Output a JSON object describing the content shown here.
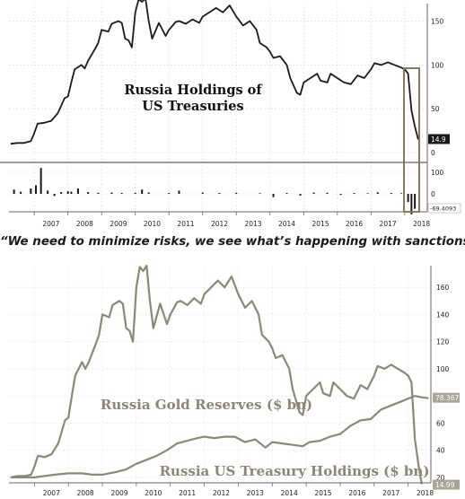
{
  "quote": "“We need to minimize risks, we see what’s happening with sanctions.”",
  "chart_data": [
    {
      "type": "line",
      "title": "Russia Holdings of US Treasuries",
      "title_lines": [
        "Russia Holdings of",
        "US Treasuries"
      ],
      "x_ticks": [
        "2007",
        "2008",
        "2009",
        "2010",
        "2011",
        "2012",
        "2013",
        "2014",
        "2015",
        "2016",
        "2017",
        "2018"
      ],
      "xlim": [
        2006.25,
        2018.67
      ],
      "ylim": [
        0,
        170
      ],
      "y_ticks": [
        0,
        50,
        100,
        150
      ],
      "grid": true,
      "last_value_label": "14.9",
      "series": [
        {
          "values": [
            [
              2006.3,
              10
            ],
            [
              2006.5,
              11
            ],
            [
              2006.7,
              11
            ],
            [
              2006.9,
              13
            ],
            [
              2007.0,
              22
            ],
            [
              2007.1,
              33
            ],
            [
              2007.3,
              34
            ],
            [
              2007.5,
              36
            ],
            [
              2007.7,
              45
            ],
            [
              2007.9,
              62
            ],
            [
              2008.0,
              64
            ],
            [
              2008.1,
              80
            ],
            [
              2008.2,
              95
            ],
            [
              2008.4,
              100
            ],
            [
              2008.5,
              96
            ],
            [
              2008.6,
              105
            ],
            [
              2008.8,
              118
            ],
            [
              2008.9,
              125
            ],
            [
              2009.0,
              140
            ],
            [
              2009.2,
              138
            ],
            [
              2009.3,
              147
            ],
            [
              2009.5,
              150
            ],
            [
              2009.6,
              148
            ],
            [
              2009.7,
              130
            ],
            [
              2009.8,
              128
            ],
            [
              2009.9,
              120
            ],
            [
              2010.0,
              160
            ],
            [
              2010.1,
              175
            ],
            [
              2010.2,
              172
            ],
            [
              2010.3,
              176
            ],
            [
              2010.4,
              150
            ],
            [
              2010.5,
              130
            ],
            [
              2010.7,
              148
            ],
            [
              2010.9,
              133
            ],
            [
              2011.0,
              140
            ],
            [
              2011.2,
              149
            ],
            [
              2011.3,
              150
            ],
            [
              2011.5,
              147
            ],
            [
              2011.7,
              152
            ],
            [
              2011.9,
              148
            ],
            [
              2012.0,
              155
            ],
            [
              2012.2,
              160
            ],
            [
              2012.4,
              165
            ],
            [
              2012.6,
              160
            ],
            [
              2012.8,
              168
            ],
            [
              2013.0,
              155
            ],
            [
              2013.2,
              145
            ],
            [
              2013.4,
              150
            ],
            [
              2013.6,
              140
            ],
            [
              2013.7,
              125
            ],
            [
              2013.9,
              120
            ],
            [
              2014.0,
              115
            ],
            [
              2014.1,
              108
            ],
            [
              2014.3,
              110
            ],
            [
              2014.5,
              100
            ],
            [
              2014.6,
              85
            ],
            [
              2014.8,
              68
            ],
            [
              2014.9,
              66
            ],
            [
              2015.0,
              80
            ],
            [
              2015.2,
              85
            ],
            [
              2015.4,
              90
            ],
            [
              2015.5,
              82
            ],
            [
              2015.7,
              80
            ],
            [
              2015.8,
              90
            ],
            [
              2016.0,
              85
            ],
            [
              2016.2,
              80
            ],
            [
              2016.4,
              78
            ],
            [
              2016.6,
              88
            ],
            [
              2016.8,
              85
            ],
            [
              2017.0,
              95
            ],
            [
              2017.1,
              102
            ],
            [
              2017.3,
              100
            ],
            [
              2017.5,
              103
            ],
            [
              2017.7,
              100
            ],
            [
              2017.9,
              97
            ],
            [
              2018.0,
              95
            ],
            [
              2018.1,
              90
            ],
            [
              2018.2,
              48
            ],
            [
              2018.3,
              30
            ],
            [
              2018.4,
              14.9
            ]
          ]
        }
      ],
      "lower_panel": {
        "type": "bar",
        "y_ticks": [
          0,
          100
        ],
        "ylim": [
          -130,
          130
        ],
        "last_value_label": "-69.4093",
        "x": [
          2006.4,
          2006.6,
          2006.9,
          2007.05,
          2007.2,
          2007.4,
          2007.6,
          2007.8,
          2008.0,
          2008.1,
          2008.3,
          2008.6,
          2008.9,
          2009.3,
          2009.6,
          2010.0,
          2010.2,
          2010.4,
          2011.0,
          2011.3,
          2012.0,
          2012.5,
          2013.0,
          2013.7,
          2014.1,
          2014.5,
          2014.9,
          2015.3,
          2015.7,
          2016.1,
          2016.5,
          2016.9,
          2017.2,
          2017.6,
          2017.9,
          2018.1,
          2018.2,
          2018.3
        ],
        "values": [
          20,
          10,
          25,
          40,
          120,
          15,
          -10,
          8,
          12,
          10,
          25,
          8,
          5,
          6,
          4,
          5,
          20,
          6,
          4,
          15,
          6,
          4,
          5,
          3,
          -15,
          4,
          -8,
          6,
          5,
          -5,
          4,
          3,
          7,
          4,
          3,
          -38,
          -95,
          -69.4
        ]
      }
    },
    {
      "type": "line",
      "x_ticks": [
        "2007",
        "2008",
        "2009",
        "2010",
        "2011",
        "2012",
        "2013",
        "2014",
        "2015",
        "2016",
        "2017",
        "2018"
      ],
      "xlim": [
        2006.25,
        2018.67
      ],
      "ylim": [
        16,
        176
      ],
      "y_ticks": [
        20,
        40,
        60,
        80,
        100,
        120,
        140,
        160
      ],
      "grid": true,
      "series": [
        {
          "name": "Russia Gold Reserves ($ bn)",
          "last_value_label": "78.367",
          "values": [
            [
              2006.3,
              20
            ],
            [
              2006.7,
              20
            ],
            [
              2007.0,
              20
            ],
            [
              2007.3,
              21
            ],
            [
              2007.6,
              22
            ],
            [
              2008.0,
              23
            ],
            [
              2008.4,
              23
            ],
            [
              2008.7,
              22
            ],
            [
              2009.0,
              22
            ],
            [
              2009.4,
              24
            ],
            [
              2009.7,
              26
            ],
            [
              2010.0,
              30
            ],
            [
              2010.3,
              33
            ],
            [
              2010.6,
              36
            ],
            [
              2010.9,
              40
            ],
            [
              2011.2,
              45
            ],
            [
              2011.5,
              47
            ],
            [
              2011.8,
              49
            ],
            [
              2012.0,
              50
            ],
            [
              2012.3,
              49
            ],
            [
              2012.6,
              50
            ],
            [
              2012.9,
              50
            ],
            [
              2013.2,
              46
            ],
            [
              2013.5,
              48
            ],
            [
              2013.8,
              42
            ],
            [
              2014.0,
              46
            ],
            [
              2014.3,
              45
            ],
            [
              2014.6,
              44
            ],
            [
              2014.9,
              43
            ],
            [
              2015.1,
              46
            ],
            [
              2015.4,
              47
            ],
            [
              2015.7,
              50
            ],
            [
              2016.0,
              52
            ],
            [
              2016.3,
              58
            ],
            [
              2016.6,
              62
            ],
            [
              2016.9,
              63
            ],
            [
              2017.2,
              70
            ],
            [
              2017.5,
              73
            ],
            [
              2017.8,
              76
            ],
            [
              2018.0,
              78
            ],
            [
              2018.2,
              80
            ],
            [
              2018.4,
              79
            ],
            [
              2018.6,
              78.367
            ]
          ]
        },
        {
          "name": "Russia US Treasury Holdings ($ bn)",
          "last_value_label": "14.99",
          "values": [
            [
              2006.3,
              20
            ],
            [
              2006.5,
              21
            ],
            [
              2006.7,
              21
            ],
            [
              2006.9,
              22
            ],
            [
              2007.0,
              28
            ],
            [
              2007.1,
              36
            ],
            [
              2007.3,
              35
            ],
            [
              2007.5,
              37
            ],
            [
              2007.7,
              45
            ],
            [
              2007.9,
              62
            ],
            [
              2008.0,
              64
            ],
            [
              2008.1,
              80
            ],
            [
              2008.2,
              95
            ],
            [
              2008.4,
              105
            ],
            [
              2008.5,
              100
            ],
            [
              2008.6,
              105
            ],
            [
              2008.8,
              118
            ],
            [
              2008.9,
              125
            ],
            [
              2009.0,
              140
            ],
            [
              2009.2,
              138
            ],
            [
              2009.3,
              147
            ],
            [
              2009.5,
              150
            ],
            [
              2009.6,
              148
            ],
            [
              2009.7,
              130
            ],
            [
              2009.8,
              128
            ],
            [
              2009.9,
              120
            ],
            [
              2010.0,
              160
            ],
            [
              2010.1,
              175
            ],
            [
              2010.2,
              172
            ],
            [
              2010.3,
              176
            ],
            [
              2010.4,
              150
            ],
            [
              2010.5,
              130
            ],
            [
              2010.7,
              148
            ],
            [
              2010.9,
              133
            ],
            [
              2011.0,
              140
            ],
            [
              2011.2,
              149
            ],
            [
              2011.3,
              150
            ],
            [
              2011.5,
              147
            ],
            [
              2011.7,
              152
            ],
            [
              2011.9,
              148
            ],
            [
              2012.0,
              155
            ],
            [
              2012.2,
              160
            ],
            [
              2012.4,
              165
            ],
            [
              2012.6,
              160
            ],
            [
              2012.8,
              168
            ],
            [
              2013.0,
              155
            ],
            [
              2013.2,
              145
            ],
            [
              2013.4,
              150
            ],
            [
              2013.6,
              140
            ],
            [
              2013.7,
              125
            ],
            [
              2013.9,
              120
            ],
            [
              2014.0,
              115
            ],
            [
              2014.1,
              108
            ],
            [
              2014.3,
              110
            ],
            [
              2014.5,
              100
            ],
            [
              2014.6,
              85
            ],
            [
              2014.8,
              68
            ],
            [
              2014.9,
              66
            ],
            [
              2015.0,
              80
            ],
            [
              2015.2,
              85
            ],
            [
              2015.4,
              90
            ],
            [
              2015.5,
              82
            ],
            [
              2015.7,
              80
            ],
            [
              2015.8,
              90
            ],
            [
              2016.0,
              85
            ],
            [
              2016.2,
              80
            ],
            [
              2016.4,
              78
            ],
            [
              2016.6,
              88
            ],
            [
              2016.8,
              85
            ],
            [
              2017.0,
              95
            ],
            [
              2017.1,
              102
            ],
            [
              2017.3,
              100
            ],
            [
              2017.5,
              103
            ],
            [
              2017.7,
              100
            ],
            [
              2017.9,
              97
            ],
            [
              2018.0,
              95
            ],
            [
              2018.1,
              90
            ],
            [
              2018.2,
              48
            ],
            [
              2018.3,
              30
            ],
            [
              2018.4,
              14.99
            ]
          ]
        }
      ]
    }
  ],
  "colors": {
    "top_line": "#1a1a1a",
    "top_grid": "#d8d8d8",
    "top_divider": "#7a7a7a",
    "highlight_box": "#8a7a5a",
    "value_flag_bg": "#1a1a1a",
    "value_flag_text": "#ffffff",
    "bottom_line": "#8d8874",
    "bottom_grid": "#e3e3e3",
    "bottom_label": "#8c8672",
    "bottom_flag_bg": "#a9a593"
  }
}
